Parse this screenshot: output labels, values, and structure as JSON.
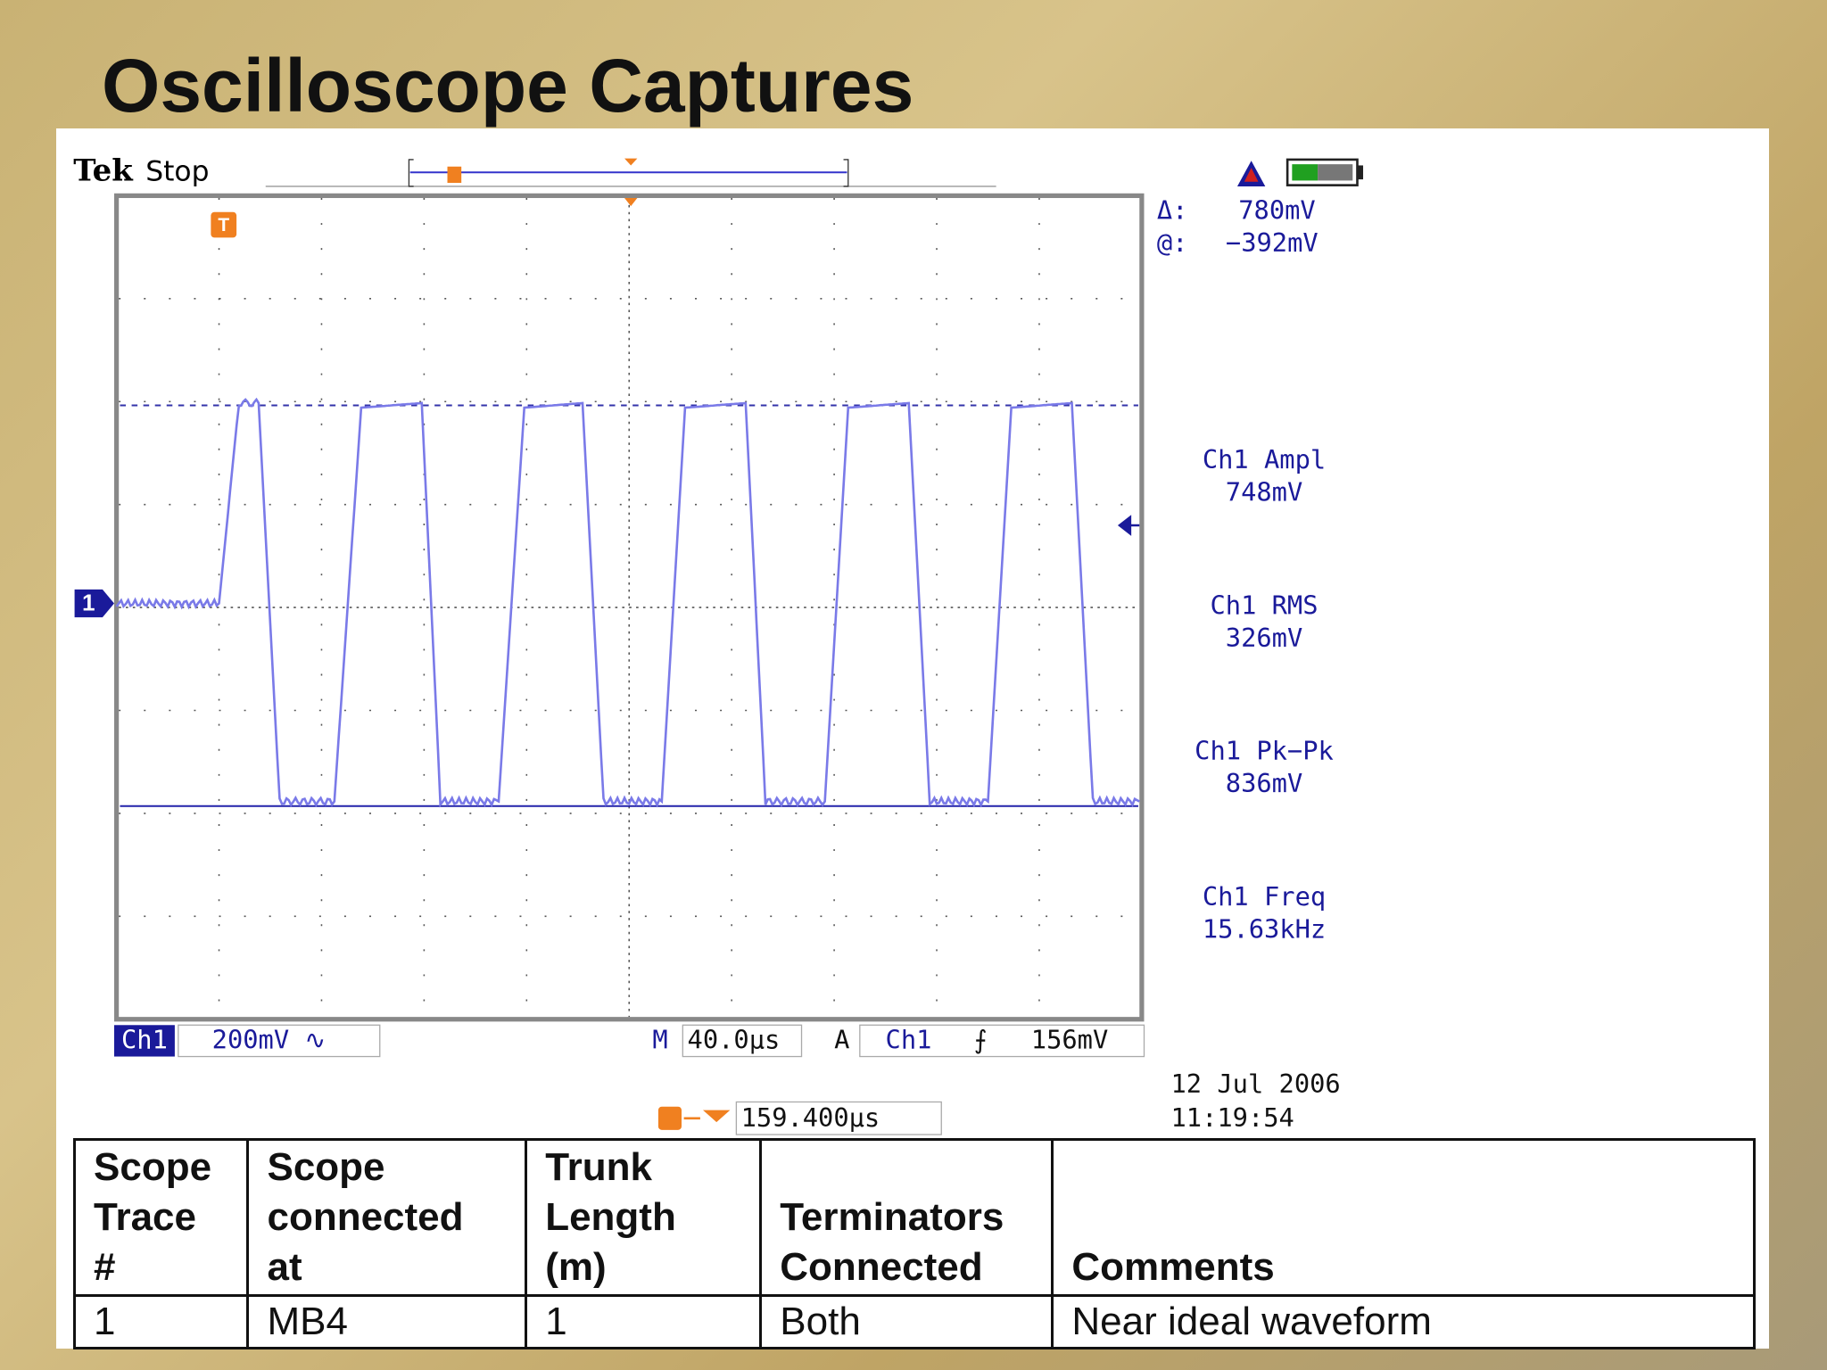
{
  "title": "Oscilloscope Captures",
  "scope": {
    "brand": "Tek",
    "status": "Stop",
    "trigger_marker": "T",
    "channel_marker": "1",
    "cursor": {
      "delta_label": "Δ:",
      "delta_value": "780mV",
      "at_label": "@:",
      "at_value": "−392mV"
    },
    "measurements": [
      {
        "label": "Ch1 Ampl",
        "value": "748mV"
      },
      {
        "label": "Ch1 RMS",
        "value": "326mV"
      },
      {
        "label": "Ch1 Pk−Pk",
        "value": "836mV"
      },
      {
        "label": "Ch1 Freq",
        "value": "15.63kHz"
      }
    ],
    "settings": {
      "channel": "Ch1",
      "scale": "200mV ∿",
      "time_label": "M",
      "timebase": "40.0µs",
      "trigger_mode": "A",
      "trigger_source": "Ch1",
      "trigger_slope": "⨍",
      "trigger_level": "156mV"
    },
    "date": "12 Jul  2006",
    "time": "11:19:54",
    "trigger_position": "159.400µs"
  },
  "table": {
    "headers": [
      [
        "Scope",
        "Trace",
        "#"
      ],
      [
        "Scope",
        "connected",
        "at"
      ],
      [
        "Trunk",
        "Length",
        "(m)"
      ],
      [
        "Terminators",
        "Connected"
      ],
      [
        "Comments"
      ]
    ],
    "rows": [
      [
        "1",
        "MB4",
        "1",
        "Both",
        "Near ideal waveform"
      ]
    ]
  }
}
